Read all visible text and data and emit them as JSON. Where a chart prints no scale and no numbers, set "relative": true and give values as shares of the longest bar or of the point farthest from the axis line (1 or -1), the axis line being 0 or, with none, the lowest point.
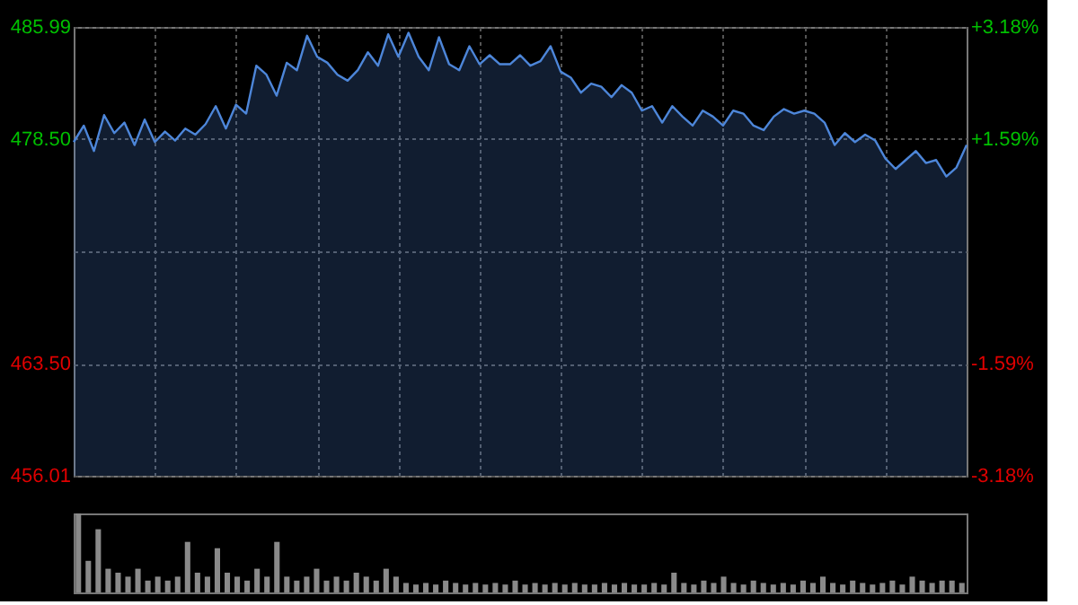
{
  "chart_data": [
    {
      "type": "area",
      "categories": [
        null,
        null,
        null,
        null,
        null,
        null,
        null,
        null,
        null,
        null,
        null,
        null,
        null,
        null,
        null,
        null,
        null,
        null,
        null,
        null,
        null,
        null,
        null,
        null,
        null,
        null,
        null,
        null,
        null,
        null,
        null,
        null,
        null,
        null,
        null,
        null,
        null,
        null,
        null,
        null,
        null,
        null,
        null,
        null,
        null,
        null,
        null,
        null,
        null,
        null,
        null,
        null,
        null,
        null,
        null,
        null,
        null,
        null,
        null,
        null,
        null,
        null,
        null,
        null,
        null,
        null,
        null,
        null,
        null,
        null,
        null,
        null,
        null,
        null,
        null,
        null,
        null,
        null,
        null,
        null,
        null,
        null,
        null,
        null,
        null,
        null,
        null,
        null,
        null
      ],
      "series": [
        {
          "color": "#4d86d9",
          "values": [
            478.3,
            479.4,
            477.7,
            480.1,
            478.9,
            479.6,
            478.1,
            479.8,
            478.3,
            479.0,
            478.4,
            479.2,
            478.8,
            479.5,
            480.7,
            479.2,
            480.8,
            480.2,
            483.4,
            482.8,
            481.4,
            483.6,
            483.1,
            485.4,
            484.0,
            483.6,
            482.8,
            482.4,
            483.1,
            484.3,
            483.4,
            485.5,
            484.0,
            485.6,
            484.0,
            483.1,
            485.3,
            483.5,
            483.1,
            484.7,
            483.5,
            484.1,
            483.5,
            483.5,
            484.1,
            483.4,
            483.7,
            484.7,
            483.0,
            482.6,
            481.6,
            482.2,
            482.0,
            481.3,
            482.1,
            481.6,
            480.4,
            480.7,
            479.6,
            480.7,
            480.0,
            479.4,
            480.4,
            480.0,
            479.4,
            480.4,
            480.2,
            479.4,
            479.1,
            480.0,
            480.5,
            480.2,
            480.4,
            480.2,
            479.6,
            478.1,
            478.9,
            478.3,
            478.8,
            478.4,
            477.2,
            476.5,
            477.1,
            477.7,
            476.9,
            477.1,
            476.0,
            476.6,
            478.1
          ]
        }
      ],
      "ylim": [
        456.01,
        485.99
      ],
      "yticks": [
        {
          "value": 456.01,
          "label": "456.01"
        },
        {
          "value": 463.5,
          "label": "463.50"
        },
        {
          "value": 471.0,
          "label": null
        },
        {
          "value": 478.5,
          "label": "478.50"
        },
        {
          "value": 485.99,
          "label": "485.99"
        }
      ],
      "y2lim": [
        -3.18,
        3.18
      ],
      "y2ticks": [
        {
          "value": -3.18,
          "label": "-3.18%"
        },
        {
          "value": -1.59,
          "label": "-1.59%"
        },
        {
          "value": 0,
          "label": null
        },
        {
          "value": 1.59,
          "label": "+1.59%"
        },
        {
          "value": 3.18,
          "label": "+3.18%"
        }
      ],
      "grid": true
    },
    {
      "type": "bar",
      "relative": true,
      "categories": [
        null,
        null,
        null,
        null,
        null,
        null,
        null,
        null,
        null,
        null,
        null,
        null,
        null,
        null,
        null,
        null,
        null,
        null,
        null,
        null,
        null,
        null,
        null,
        null,
        null,
        null,
        null,
        null,
        null,
        null,
        null,
        null,
        null,
        null,
        null,
        null,
        null,
        null,
        null,
        null,
        null,
        null,
        null,
        null,
        null,
        null,
        null,
        null,
        null,
        null,
        null,
        null,
        null,
        null,
        null,
        null,
        null,
        null,
        null,
        null,
        null,
        null,
        null,
        null,
        null,
        null,
        null,
        null,
        null,
        null,
        null,
        null,
        null,
        null,
        null,
        null,
        null,
        null,
        null,
        null,
        null,
        null,
        null,
        null,
        null,
        null,
        null,
        null,
        null,
        null
      ],
      "series": [
        {
          "color": "#8a8a8a",
          "values": [
            1.0,
            0.4,
            0.8,
            0.3,
            0.25,
            0.2,
            0.3,
            0.15,
            0.2,
            0.15,
            0.2,
            0.64,
            0.25,
            0.2,
            0.56,
            0.25,
            0.2,
            0.15,
            0.3,
            0.2,
            0.64,
            0.2,
            0.15,
            0.2,
            0.3,
            0.15,
            0.2,
            0.15,
            0.25,
            0.2,
            0.15,
            0.3,
            0.2,
            0.12,
            0.1,
            0.12,
            0.1,
            0.15,
            0.12,
            0.1,
            0.12,
            0.1,
            0.12,
            0.1,
            0.15,
            0.1,
            0.12,
            0.1,
            0.12,
            0.1,
            0.12,
            0.1,
            0.1,
            0.12,
            0.1,
            0.12,
            0.1,
            0.1,
            0.12,
            0.1,
            0.25,
            0.12,
            0.1,
            0.15,
            0.12,
            0.2,
            0.12,
            0.1,
            0.15,
            0.12,
            0.1,
            0.12,
            0.1,
            0.15,
            0.12,
            0.2,
            0.12,
            0.1,
            0.15,
            0.12,
            0.1,
            0.12,
            0.15,
            0.1,
            0.2,
            0.15,
            0.12,
            0.15,
            0.15,
            0.12
          ]
        }
      ]
    }
  ]
}
